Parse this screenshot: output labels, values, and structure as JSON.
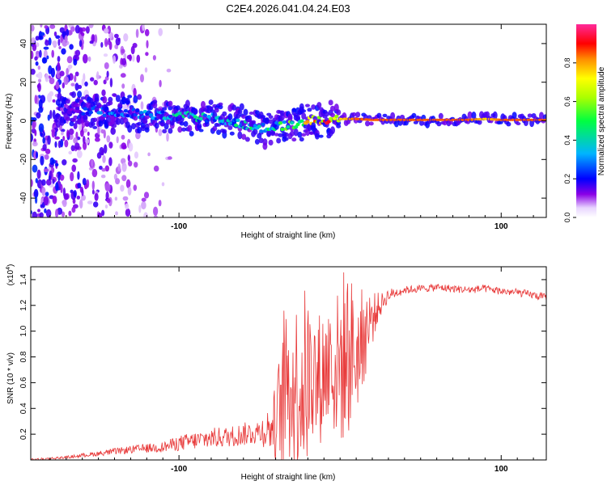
{
  "figure_title": "C2E4.2026.041.04.24.E03",
  "chart_data": [
    {
      "type": "heatmap",
      "title": "C2E4.2026.041.04.24.E03",
      "xlabel": "Height of straight line (km)",
      "ylabel": "Frequency (Hz)",
      "xlim": [
        -192,
        128
      ],
      "ylim": [
        -50,
        50
      ],
      "x_ticks": [
        -100,
        100
      ],
      "x_tick_labels": [
        "-100",
        "100"
      ],
      "y_ticks": [
        -40,
        -20,
        0,
        20,
        40
      ],
      "y_tick_labels": [
        "-40",
        "-20",
        "0",
        "20",
        "40"
      ],
      "colorbar": {
        "label": "Normalized spectral amplitude",
        "range": [
          0.0,
          1.0
        ],
        "ticks": [
          0.0,
          0.2,
          0.4,
          0.6,
          0.8
        ],
        "tick_labels": [
          "0.0",
          "0.2",
          "0.4",
          "0.6",
          "0.8"
        ],
        "colors": [
          "#ffffff",
          "#d9b8ff",
          "#7b00e0",
          "#0000ff",
          "#00ccff",
          "#00ff66",
          "#ffff00",
          "#ff8800",
          "#ff0000",
          "#ff33aa"
        ]
      },
      "ridge": {
        "description": "dominant-frequency track",
        "x": [
          -170,
          -150,
          -130,
          -110,
          -90,
          -75,
          -60,
          -50,
          -40,
          -30,
          -20,
          -10,
          0,
          10,
          20,
          40,
          60,
          80,
          90,
          100,
          128
        ],
        "freq_hz": [
          6,
          5,
          4,
          3,
          2,
          1,
          -2,
          -4,
          -3,
          -2,
          0,
          0.5,
          1,
          1,
          0.5,
          0.5,
          0.5,
          0.5,
          1,
          0.5,
          0.5
        ],
        "amplitude": [
          0.15,
          0.25,
          0.3,
          0.35,
          0.4,
          0.35,
          0.45,
          0.4,
          0.45,
          0.55,
          0.7,
          0.8,
          0.75,
          0.85,
          0.85,
          0.85,
          0.85,
          0.85,
          0.75,
          0.85,
          0.85
        ]
      },
      "noise_region": {
        "x_range": [
          -192,
          -130
        ],
        "freq_range": [
          -50,
          50
        ],
        "amplitude": [
          0.05,
          0.2
        ]
      }
    },
    {
      "type": "line",
      "xlabel": "Height of straight line (km)",
      "ylabel": "SNR (10 * v/v)",
      "y_scale_label": "(x10",
      "y_scale_exponent": "4",
      "y_scale_suffix": ")",
      "xlim": [
        -192,
        128
      ],
      "ylim": [
        0,
        1.5
      ],
      "x_ticks": [
        -100,
        100
      ],
      "x_tick_labels": [
        "-100",
        "100"
      ],
      "y_ticks": [
        0.2,
        0.4,
        0.6,
        0.8,
        1.0,
        1.2,
        1.4
      ],
      "y_tick_labels": [
        "0.2",
        "0.4",
        "0.6",
        "0.8",
        "1.0",
        "1.2",
        "1.4"
      ],
      "series": [
        {
          "name": "SNR",
          "color": "#e83a3a",
          "x": [
            -192,
            -170,
            -150,
            -130,
            -110,
            -100,
            -90,
            -80,
            -70,
            -60,
            -50,
            -42,
            -38,
            -34,
            -30,
            -26,
            -22,
            -18,
            -14,
            -10,
            -6,
            -2,
            2,
            6,
            10,
            14,
            18,
            22,
            26,
            30,
            40,
            50,
            60,
            70,
            80,
            90,
            100,
            110,
            120,
            128
          ],
          "values": [
            0.0,
            0.02,
            0.05,
            0.08,
            0.1,
            0.13,
            0.15,
            0.17,
            0.18,
            0.2,
            0.22,
            0.25,
            0.35,
            0.5,
            0.55,
            0.6,
            0.6,
            0.65,
            0.6,
            0.7,
            0.75,
            0.7,
            0.8,
            0.85,
            0.8,
            0.95,
            1.05,
            1.15,
            1.22,
            1.28,
            1.32,
            1.33,
            1.34,
            1.33,
            1.32,
            1.33,
            1.31,
            1.3,
            1.28,
            1.26
          ],
          "spike_amplitude": [
            0.01,
            0.01,
            0.02,
            0.03,
            0.04,
            0.06,
            0.07,
            0.08,
            0.08,
            0.09,
            0.1,
            0.2,
            0.45,
            0.6,
            0.6,
            0.7,
            0.75,
            0.6,
            0.55,
            0.5,
            0.55,
            0.6,
            0.7,
            0.65,
            0.45,
            0.4,
            0.3,
            0.15,
            0.08,
            0.05,
            0.03,
            0.03,
            0.03,
            0.03,
            0.03,
            0.03,
            0.03,
            0.03,
            0.03,
            0.03
          ]
        }
      ]
    }
  ]
}
